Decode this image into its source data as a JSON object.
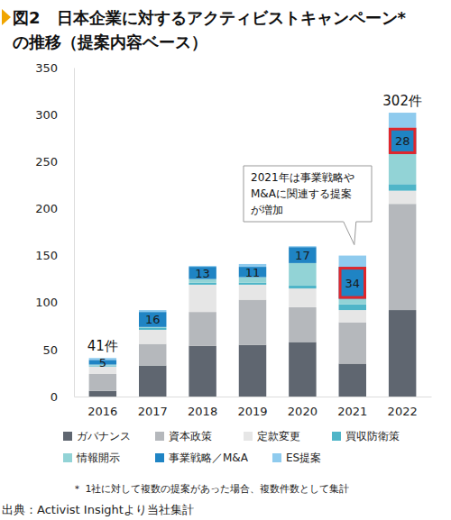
{
  "chart_data": {
    "type": "bar",
    "stacked": true,
    "title": [
      "図2　日本企業に対するアクティビストキャンペーン*",
      "の推移（提案内容ベース）"
    ],
    "categories": [
      "2016",
      "2017",
      "2018",
      "2019",
      "2020",
      "2021",
      "2022"
    ],
    "ylim": [
      0,
      350
    ],
    "yticks": [
      0,
      50,
      100,
      150,
      200,
      250,
      300,
      350
    ],
    "legend": "bottom",
    "series": [
      {
        "name": "ガバナンス",
        "color": "#5f6670",
        "values": [
          6,
          33,
          54,
          55,
          58,
          35,
          92
        ]
      },
      {
        "name": "資本政策",
        "color": "#b5b8bc",
        "values": [
          18,
          23,
          36,
          48,
          37,
          44,
          113
        ]
      },
      {
        "name": "定款変更",
        "color": "#e6e6e6",
        "values": [
          8,
          15,
          29,
          16,
          20,
          13,
          14
        ]
      },
      {
        "name": "買収防衛策",
        "color": "#4fb5c8",
        "values": [
          1,
          2,
          2,
          2,
          3,
          6,
          7
        ]
      },
      {
        "name": "情報開示",
        "color": "#92d3d6",
        "values": [
          1,
          1,
          4,
          6,
          24,
          6,
          32
        ]
      },
      {
        "name": "事業戦略／M&A",
        "color": "#1f84c4",
        "values": [
          5,
          16,
          13,
          11,
          17,
          34,
          28
        ],
        "data_labels": true
      },
      {
        "name": "ES提案",
        "color": "#8fcbee",
        "values": [
          2,
          2,
          1,
          3,
          1,
          12,
          16
        ]
      }
    ],
    "total_labels": [
      {
        "x": "2016",
        "label": "41件"
      },
      {
        "x": "2022",
        "label": "302件"
      }
    ],
    "annotations": [
      {
        "type": "callout",
        "x": "2021",
        "text": [
          "2021年は事業戦略や",
          "M&Aに関連する提案",
          "が増加"
        ]
      },
      {
        "type": "box",
        "x": "2021",
        "series": "事業戦略／M&A"
      },
      {
        "type": "box",
        "x": "2022",
        "series": "事業戦略／M&A"
      }
    ],
    "note": "＊ 1社に対して複数の提案があった場合、複数件数として集計",
    "source": "出典：Activist Insightより当社集計"
  }
}
